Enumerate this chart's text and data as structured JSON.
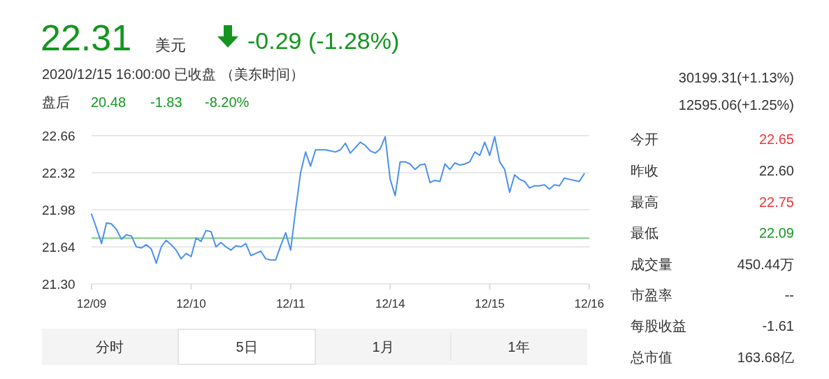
{
  "chart_data": {
    "type": "line",
    "title": "22.31",
    "annotations": [
      "美元",
      "-0.29 (-1.28%)",
      "2020/12/15 16:00:00  已收盘  （美东时间）",
      "盘后",
      "20.48",
      "-1.83",
      "-8.20%",
      "30199.31(+1.13%)",
      "12595.06(+1.25%)",
      "今开",
      "22.65",
      "昨收",
      "22.60",
      "最高",
      "22.75",
      "最低",
      "22.09",
      "成交量",
      "450.44万",
      "市盈率",
      "--",
      "每股收益",
      "-1.61",
      "总市值",
      "163.68亿",
      "分时",
      "5日",
      "1月",
      "1年"
    ],
    "categories": [
      "12/09",
      null,
      null,
      null,
      null,
      null,
      null,
      null,
      null,
      null,
      null,
      null,
      null,
      null,
      null,
      null,
      null,
      null,
      null,
      null,
      "12/10",
      null,
      null,
      null,
      null,
      null,
      null,
      null,
      null,
      null,
      null,
      null,
      null,
      null,
      null,
      null,
      null,
      null,
      null,
      null,
      "12/11",
      null,
      null,
      null,
      null,
      null,
      null,
      null,
      null,
      null,
      null,
      null,
      null,
      null,
      null,
      null,
      null,
      null,
      null,
      null,
      "12/14",
      null,
      null,
      null,
      null,
      null,
      null,
      null,
      null,
      null,
      null,
      null,
      null,
      null,
      null,
      null,
      null,
      null,
      null,
      null,
      "12/15",
      null,
      null,
      null,
      null,
      null,
      null,
      null,
      null,
      null,
      null,
      null,
      null,
      null,
      null,
      null,
      null,
      null,
      null,
      null,
      "12/16"
    ],
    "series": [
      {
        "color": "#4a90f0",
        "values": [
          21.94,
          21.81,
          21.67,
          21.86,
          21.85,
          21.8,
          21.71,
          21.75,
          21.74,
          21.64,
          21.63,
          21.66,
          21.62,
          21.49,
          21.64,
          21.7,
          21.66,
          21.61,
          21.53,
          21.58,
          21.55,
          21.72,
          21.69,
          21.79,
          21.78,
          21.64,
          21.68,
          21.64,
          21.61,
          21.65,
          21.64,
          21.67,
          21.56,
          21.58,
          21.6,
          21.53,
          21.52,
          21.52,
          21.65,
          21.77,
          21.61,
          21.98,
          22.32,
          22.51,
          22.38,
          22.53,
          22.53,
          22.53,
          22.52,
          22.51,
          22.53,
          22.59,
          22.5,
          22.55,
          22.6,
          22.57,
          22.52,
          22.5,
          22.54,
          22.65,
          22.26,
          22.11,
          22.42,
          22.42,
          22.4,
          22.35,
          22.39,
          22.4,
          22.23,
          22.25,
          22.24,
          22.4,
          22.35,
          22.41,
          22.39,
          22.4,
          22.42,
          22.51,
          22.48,
          22.6,
          22.48,
          22.65,
          22.42,
          22.35,
          22.14,
          22.3,
          22.26,
          22.24,
          22.18,
          22.2,
          22.2,
          22.21,
          22.17,
          22.21,
          22.2,
          22.27,
          22.26,
          22.25,
          22.24,
          22.31,
          null
        ]
      }
    ],
    "ylim": [
      21.3,
      22.66
    ],
    "yticks": [
      {
        "value": 21.3,
        "label": "21.30"
      },
      {
        "value": 21.64,
        "label": "21.64"
      },
      {
        "value": 21.98,
        "label": "21.98"
      },
      {
        "value": 22.32,
        "label": "22.32"
      },
      {
        "value": 22.66,
        "label": "22.66"
      }
    ],
    "grid": "y",
    "ref_lines": [
      {
        "axis": "y",
        "value": 21.72,
        "color": "#7dc97d"
      }
    ]
  }
}
